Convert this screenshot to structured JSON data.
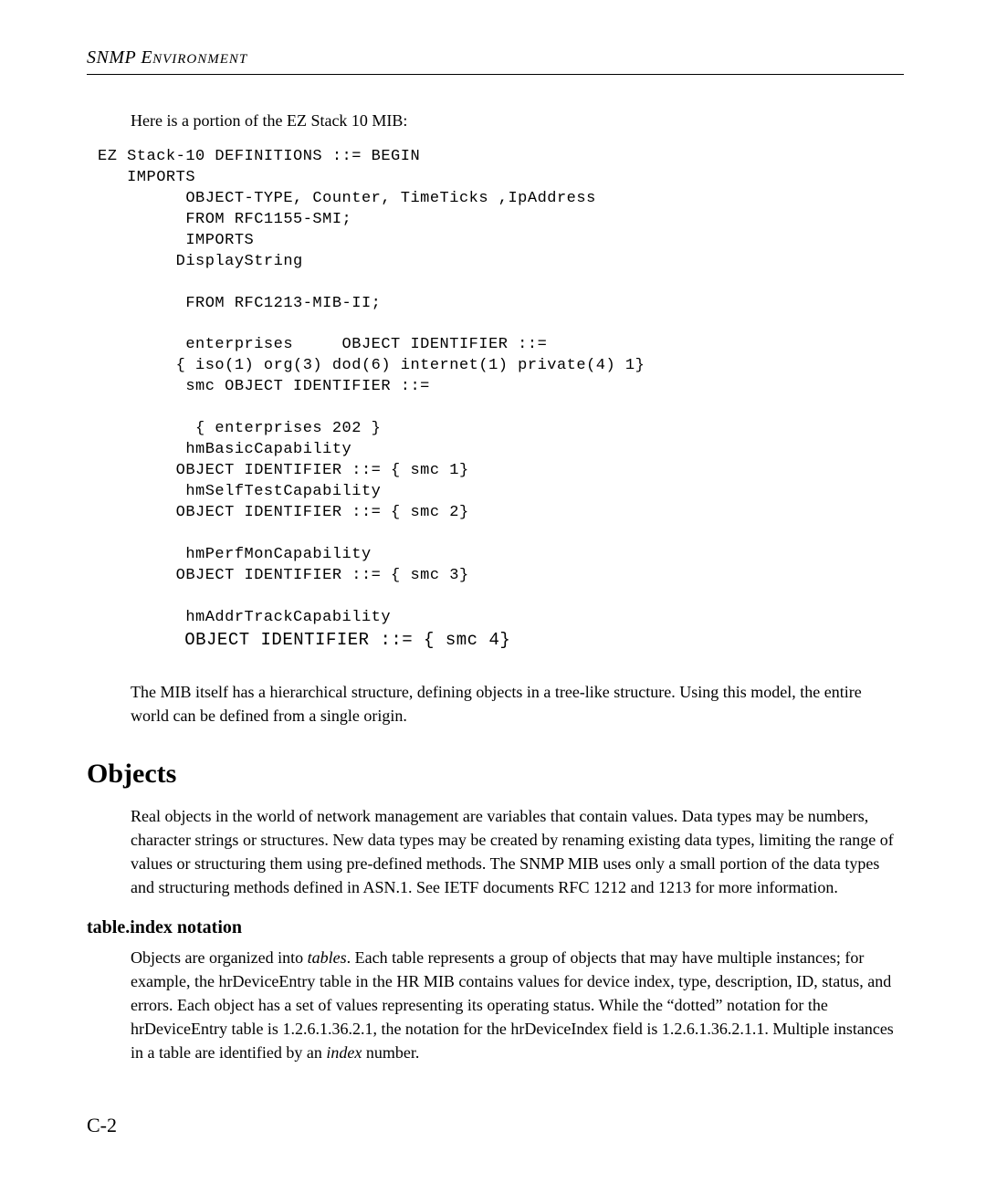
{
  "header": {
    "title_main": "SNMP E",
    "title_smallcaps": "NVIRONMENT"
  },
  "intro": "Here is a portion of the EZ Stack 10 MIB:",
  "code": {
    "l01": "EZ Stack-10 DEFINITIONS ::= BEGIN",
    "l02": "   IMPORTS",
    "l03": "         OBJECT-TYPE, Counter, TimeTicks ,IpAddress",
    "l04": "         FROM RFC1155-SMI;",
    "l05": "         IMPORTS",
    "l06": "        DisplayString",
    "l07": "         FROM RFC1213-MIB-II;",
    "l08": "         enterprises     OBJECT IDENTIFIER ::=",
    "l09": "        { iso(1) org(3) dod(6) internet(1) private(4) 1}",
    "l10": "         smc OBJECT IDENTIFIER ::=",
    "l11": "          { enterprises 202 }",
    "l12": "         hmBasicCapability",
    "l13": "        OBJECT IDENTIFIER ::= { smc 1}",
    "l14": "         hmSelfTestCapability",
    "l15": "        OBJECT IDENTIFIER ::= { smc 2}",
    "l16": "         hmPerfMonCapability",
    "l17": "        OBJECT IDENTIFIER ::= { smc 3}",
    "l18": "         hmAddrTrackCapability",
    "l19": "        OBJECT IDENTIFIER ::= { smc 4}"
  },
  "para_after_code": "The MIB itself has a hierarchical structure, defining objects in a tree-like structure. Using this model, the entire world can be defined from a single origin.",
  "objects": {
    "heading": "Objects",
    "para": "Real objects in the world of network management are variables that contain values. Data types may be numbers, character strings or structures. New data types may be created by renaming existing data types, limiting the range of values or structuring them using pre-defined methods. The SNMP MIB uses only a small portion of the data types and structuring methods defined in ASN.1. See IETF documents RFC 1212 and 1213 for more information."
  },
  "table_index": {
    "heading": "table.index notation",
    "para_pre": "Objects are organized into ",
    "tables_word": "tables",
    "para_mid": ". Each table represents a group of objects that may have multiple instances; for example, the hrDeviceEntry table in the HR MIB contains values for device index, type, description, ID, status, and errors. Each object has a set of values representing its operating status. While the “dotted” notation for the hrDeviceEntry table is 1.2.6.1.36.2.1, the notation for the hrDeviceIndex field is 1.2.6.1.36.2.1.1. Multiple instances in a table are identified by an ",
    "index_word": "index",
    "para_post": " number."
  },
  "pagenum": "C-2"
}
